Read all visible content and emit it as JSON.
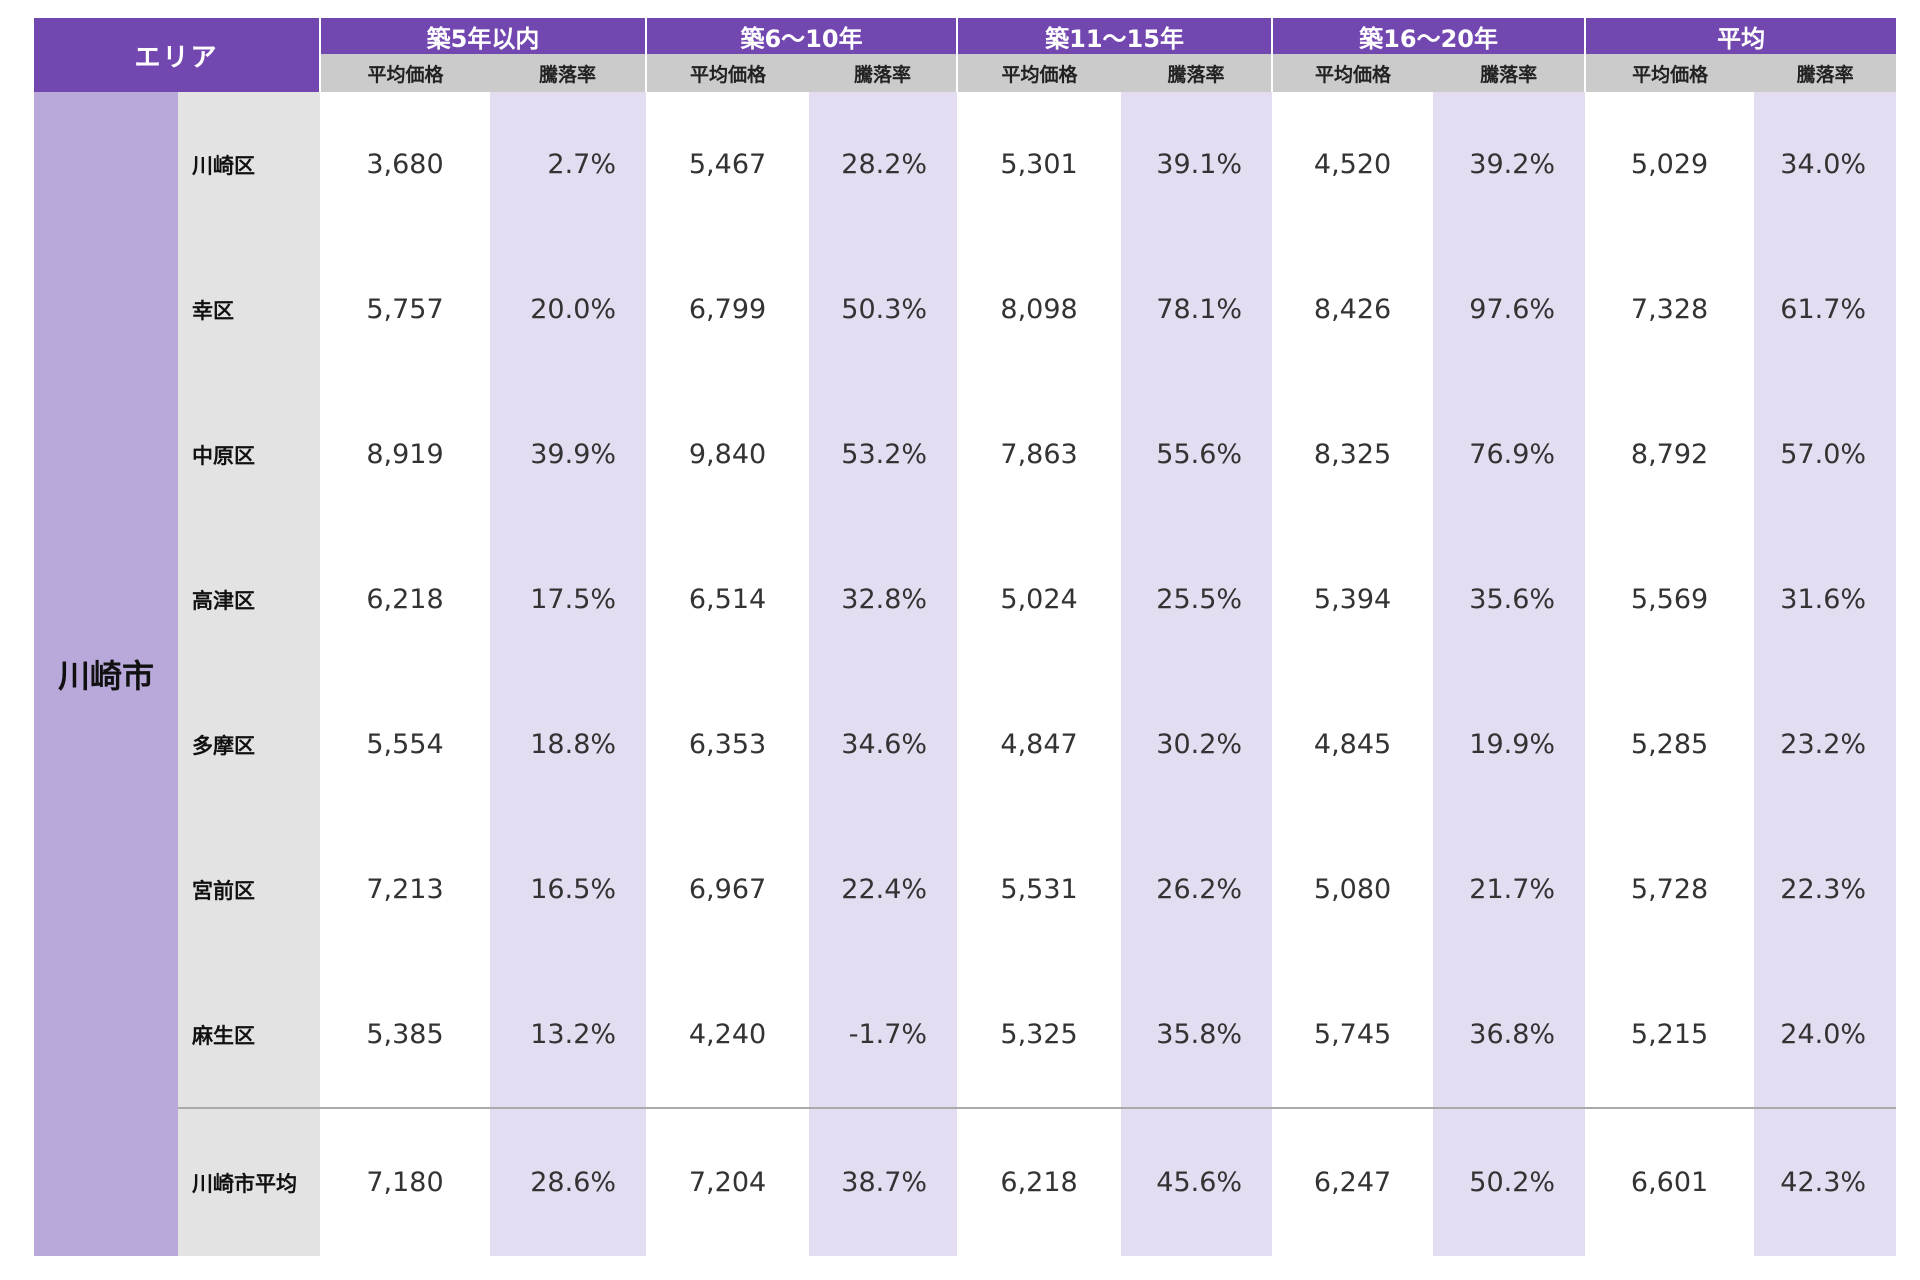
{
  "header": {
    "area_label": "エリア",
    "groups": [
      "築5年以内",
      "築6〜10年",
      "築11〜15年",
      "築16〜20年",
      "平均"
    ],
    "sub_price": "平均価格",
    "sub_rate": "騰落率"
  },
  "city": "川崎市",
  "rows": [
    {
      "ward": "川崎区",
      "cells": [
        "3,680",
        "2.7%",
        "5,467",
        "28.2%",
        "5,301",
        "39.1%",
        "4,520",
        "39.2%",
        "5,029",
        "34.0%"
      ]
    },
    {
      "ward": "幸区",
      "cells": [
        "5,757",
        "20.0%",
        "6,799",
        "50.3%",
        "8,098",
        "78.1%",
        "8,426",
        "97.6%",
        "7,328",
        "61.7%"
      ]
    },
    {
      "ward": "中原区",
      "cells": [
        "8,919",
        "39.9%",
        "9,840",
        "53.2%",
        "7,863",
        "55.6%",
        "8,325",
        "76.9%",
        "8,792",
        "57.0%"
      ]
    },
    {
      "ward": "高津区",
      "cells": [
        "6,218",
        "17.5%",
        "6,514",
        "32.8%",
        "5,024",
        "25.5%",
        "5,394",
        "35.6%",
        "5,569",
        "31.6%"
      ]
    },
    {
      "ward": "多摩区",
      "cells": [
        "5,554",
        "18.8%",
        "6,353",
        "34.6%",
        "4,847",
        "30.2%",
        "4,845",
        "19.9%",
        "5,285",
        "23.2%"
      ]
    },
    {
      "ward": "宮前区",
      "cells": [
        "7,213",
        "16.5%",
        "6,967",
        "22.4%",
        "5,531",
        "26.2%",
        "5,080",
        "21.7%",
        "5,728",
        "22.3%"
      ]
    },
    {
      "ward": "麻生区",
      "cells": [
        "5,385",
        "13.2%",
        "4,240",
        "-1.7%",
        "5,325",
        "35.8%",
        "5,745",
        "36.8%",
        "5,215",
        "24.0%"
      ]
    }
  ],
  "average_row": {
    "ward": "川崎市平均",
    "cells": [
      "7,180",
      "28.6%",
      "7,204",
      "38.7%",
      "6,218",
      "45.6%",
      "6,247",
      "50.2%",
      "6,601",
      "42.3%"
    ]
  }
}
